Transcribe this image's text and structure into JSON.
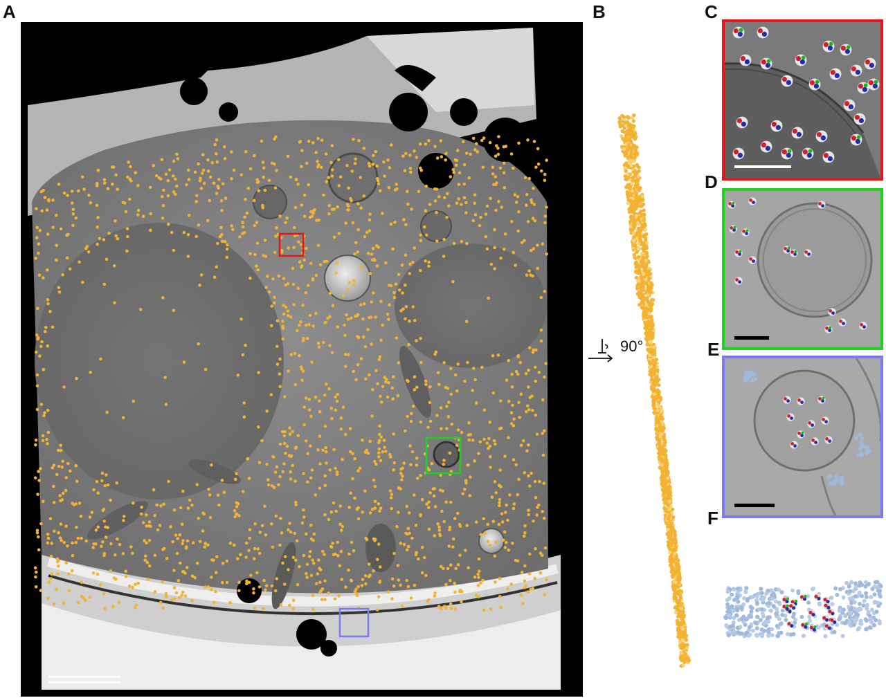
{
  "figure": {
    "panel_labels": [
      "A",
      "B",
      "C",
      "D",
      "E",
      "F"
    ],
    "rotation_label": "90°",
    "colors": {
      "particle": "#f2b233",
      "box_c": "#e8141b",
      "box_d": "#1ed21e",
      "box_e": "#7b7bef",
      "subunit_red": "#d0202a",
      "subunit_blue": "#1f2ea8",
      "subunit_green": "#17b61f",
      "membrane_blue": "#9fb9dd"
    }
  }
}
